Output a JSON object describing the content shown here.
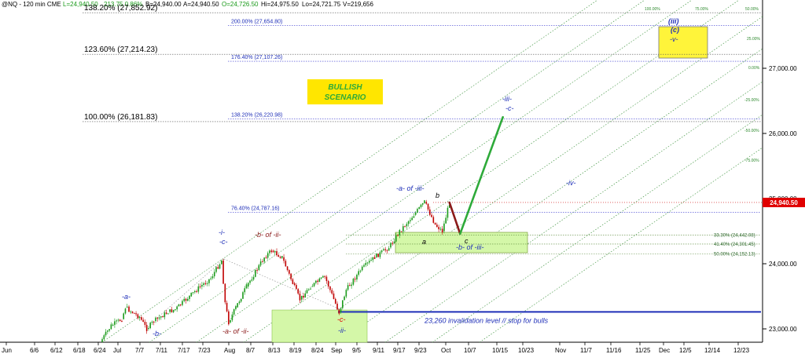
{
  "header": {
    "symbol": "@NQ - 120 min  CME",
    "last": "L=24,940.50",
    "change": "213.75  0.86%",
    "bid": "B=24,940.00",
    "ask": "A=24,940.50",
    "open": "O=24,726.50",
    "high": "Hi=24,975.50",
    "low": "Lo=24,721.75",
    "volume": "V=219,656"
  },
  "chart_data": {
    "type": "line",
    "title": "",
    "xlabel": "",
    "ylabel": "",
    "ylim": [
      22650,
      28100
    ],
    "y_ticks": [
      23000,
      24000,
      25000,
      26000,
      27000
    ],
    "y_tick_labels": [
      "23,000.00",
      "24,000.00",
      "25,000.00",
      "26,000.00",
      "27,000.00"
    ],
    "x_tick_labels": [
      "Jun",
      "6/6",
      "6/12",
      "6/18",
      "6/24",
      "Jul",
      "7/7",
      "7/11",
      "7/17",
      "7/23",
      "Aug",
      "8/7",
      "8/13",
      "8/19",
      "8/24",
      "Sep",
      "9/5",
      "9/11",
      "9/17",
      "9/23",
      "Oct",
      "10/7",
      "10/15",
      "10/23",
      "Nov",
      "11/7",
      "11/16",
      "11/25",
      "Dec",
      "12/5",
      "12/14",
      "12/23"
    ],
    "last_price": 24940.5,
    "last_price_label": "24,940.50",
    "accent_colors": {
      "projection_up": "#2eaa3a",
      "projection_down": "#8b1a1a",
      "fib": "#3a3ad0",
      "fan": "#2f8a2f",
      "invalidation": "#1f2fb8",
      "label_red": "#e00000",
      "zone_green": "#d4f7a8",
      "zone_yellow": "#fff43a"
    },
    "price_series": [
      {
        "x": "Jun 27",
        "y": 22800
      },
      {
        "x": "Jun 30",
        "y": 23050
      },
      {
        "x": "Jul 3",
        "y": 23150
      },
      {
        "x": "Jul 4",
        "y": 23330
      },
      {
        "x": "Jul 8",
        "y": 23180
      },
      {
        "x": "Jul 10",
        "y": 23000
      },
      {
        "x": "Jul 12",
        "y": 23120
      },
      {
        "x": "Jul 16",
        "y": 23260
      },
      {
        "x": "Jul 18",
        "y": 23300
      },
      {
        "x": "Jul 22",
        "y": 23500
      },
      {
        "x": "Jul 25",
        "y": 23650
      },
      {
        "x": "Jul 28",
        "y": 23780
      },
      {
        "x": "Jul 31",
        "y": 24050
      },
      {
        "x": "Aug 1",
        "y": 23400
      },
      {
        "x": "Aug 2",
        "y": 23100
      },
      {
        "x": "Aug 4",
        "y": 23330
      },
      {
        "x": "Aug 7",
        "y": 23650
      },
      {
        "x": "Aug 12",
        "y": 24100
      },
      {
        "x": "Aug 14",
        "y": 24200
      },
      {
        "x": "Aug 17",
        "y": 24100
      },
      {
        "x": "Aug 20",
        "y": 23700
      },
      {
        "x": "Aug 22",
        "y": 23450
      },
      {
        "x": "Aug 25",
        "y": 23650
      },
      {
        "x": "Aug 29",
        "y": 23800
      },
      {
        "x": "Sep 2",
        "y": 23250
      },
      {
        "x": "Sep 4",
        "y": 23600
      },
      {
        "x": "Sep 8",
        "y": 23900
      },
      {
        "x": "Sep 12",
        "y": 24100
      },
      {
        "x": "Sep 16",
        "y": 24250
      },
      {
        "x": "Sep 19",
        "y": 24500
      },
      {
        "x": "Sep 23",
        "y": 24750
      },
      {
        "x": "Sep 26",
        "y": 24950
      },
      {
        "x": "Sep 29",
        "y": 24600
      },
      {
        "x": "Oct 1",
        "y": 24500
      },
      {
        "x": "Oct 3",
        "y": 24940
      }
    ],
    "projection_path": [
      {
        "x": "Oct 3",
        "y": 24940,
        "kind": "down"
      },
      {
        "x": "Oct 6",
        "y": 24460,
        "kind": "down"
      },
      {
        "x": "Oct 18",
        "y": 26250,
        "kind": "up"
      }
    ],
    "fib_levels": [
      {
        "label": "200.00% (27,654.80)",
        "value": 27654.8
      },
      {
        "label": "176.40% (27,107.26)",
        "value": 27107.26
      },
      {
        "label": "138.20% (26,220.98)",
        "value": 26220.98
      },
      {
        "label": "76.40% (24,787.16)",
        "value": 24787.16
      }
    ],
    "fib_levels_left": [
      {
        "label": "138.20% (27,852.92)",
        "value": 27852.92
      },
      {
        "label": "123.60% (27,214.23)",
        "value": 27214.23
      },
      {
        "label": "100.00% (26,181.83)",
        "value": 26181.83
      }
    ],
    "retracements": [
      {
        "label": "33.30% (24,442.08)",
        "value": 24442.08
      },
      {
        "label": "41.40% (24,301.45)",
        "value": 24301.45
      },
      {
        "label": "50.00% (24,152.13)",
        "value": 24152.13
      }
    ],
    "invalidation": {
      "label": "23,260 invalidation level // stop for bulls",
      "value": 23260
    },
    "fan_labels": [
      "100.00%",
      "75.00%",
      "50.00%",
      "25.00%",
      "0.00%",
      "-25.00%",
      "-50.00%",
      "-75.00%"
    ],
    "scenario_label": [
      "BULLISH",
      "SCENARIO"
    ],
    "wave_labels": {
      "a_top": "-a-",
      "b_bottom": "-b-",
      "i": "-i-",
      "c_i": "-c-",
      "a_of_ii": "-a- of -ii-",
      "b_of_ii": "-b- of -ii-",
      "c_ii": "-c-",
      "ii": "-ii-",
      "a_of_iii": "-a- of -iii-",
      "b_small": "b",
      "a_small": "a",
      "c_small": "c",
      "b_of_iii": "-b- of -iii-",
      "iii": "-iii-",
      "c_iii": "-c-",
      "iv": "-iv-",
      "big_iii": "(iii)",
      "big_c": "(c)",
      "v": "-v-"
    }
  }
}
